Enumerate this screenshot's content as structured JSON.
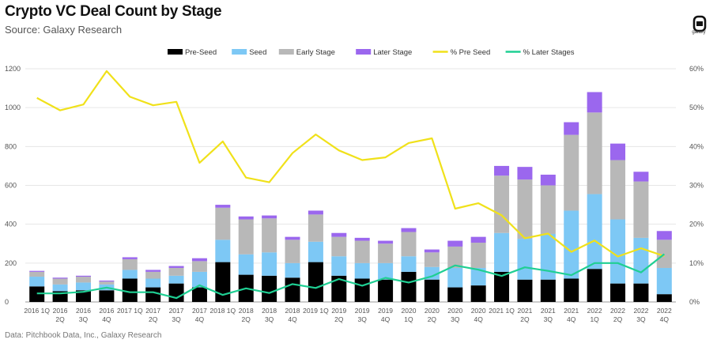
{
  "header": {
    "title": "Crypto VC Deal Count by Stage",
    "subtitle": "Source: Galaxy Research"
  },
  "footer": {
    "note": "Data: Pitchbook Data, Inc., Galaxy Research"
  },
  "logo": {
    "text": "galaxy"
  },
  "colors": {
    "pre_seed": "#000000",
    "seed": "#7dc8f5",
    "early": "#b8b8b8",
    "later": "#9b67ee",
    "pct_pre_seed": "#f0e11a",
    "pct_later": "#1fcf93",
    "grid": "#e6e6e6",
    "axis_text": "#555555"
  },
  "chart_data": {
    "type": "bar",
    "stacked": true,
    "title": "Crypto VC Deal Count by Stage",
    "ylim": [
      0,
      1200
    ],
    "yticks": [
      "0",
      "200",
      "400",
      "600",
      "800",
      "1000",
      "1200"
    ],
    "y2lim": [
      0,
      60
    ],
    "y2ticks": [
      "0%",
      "10%",
      "20%",
      "30%",
      "40%",
      "50%",
      "60%"
    ],
    "legend_position": "top",
    "categories": [
      [
        "2016 1Q",
        ""
      ],
      [
        "2016",
        "2Q"
      ],
      [
        "2016",
        "3Q"
      ],
      [
        "2016",
        "4Q"
      ],
      [
        "2017 1Q",
        ""
      ],
      [
        "2017",
        "2Q"
      ],
      [
        "2017",
        "3Q"
      ],
      [
        "2017",
        "4Q"
      ],
      [
        "2018 1Q",
        ""
      ],
      [
        "2018",
        "2Q"
      ],
      [
        "2018",
        "3Q"
      ],
      [
        "2018",
        "4Q"
      ],
      [
        "2019 1Q",
        ""
      ],
      [
        "2019",
        "2Q"
      ],
      [
        "2019",
        "3Q"
      ],
      [
        "2019",
        "4Q"
      ],
      [
        "2020",
        "1Q"
      ],
      [
        "2020",
        "2Q"
      ],
      [
        "2020",
        "3Q"
      ],
      [
        "2020",
        "4Q"
      ],
      [
        "2021 1Q",
        ""
      ],
      [
        "2021",
        "2Q"
      ],
      [
        "2021",
        "3Q"
      ],
      [
        "2021",
        "4Q"
      ],
      [
        "2022",
        "1Q"
      ],
      [
        "2022",
        "2Q"
      ],
      [
        "2022",
        "3Q"
      ],
      [
        "2022",
        "4Q"
      ]
    ],
    "series": [
      {
        "name": "Pre-Seed",
        "kind": "bar",
        "values": [
          80,
          55,
          60,
          60,
          120,
          75,
          95,
          75,
          205,
          140,
          135,
          125,
          205,
          135,
          120,
          115,
          155,
          115,
          75,
          85,
          155,
          115,
          115,
          120,
          170,
          95,
          95,
          40
        ]
      },
      {
        "name": "Seed",
        "kind": "bar",
        "values": [
          50,
          35,
          40,
          30,
          45,
          45,
          40,
          80,
          115,
          105,
          120,
          75,
          105,
          100,
          80,
          85,
          80,
          65,
          100,
          90,
          200,
          210,
          235,
          350,
          385,
          330,
          235,
          135
        ]
      },
      {
        "name": "Early Stage",
        "kind": "bar",
        "values": [
          25,
          30,
          30,
          15,
          55,
          35,
          40,
          55,
          165,
          180,
          175,
          120,
          140,
          100,
          115,
          100,
          125,
          75,
          110,
          130,
          295,
          305,
          250,
          390,
          420,
          305,
          290,
          145
        ]
      },
      {
        "name": "Later Stage",
        "kind": "bar",
        "values": [
          5,
          5,
          5,
          5,
          10,
          10,
          10,
          15,
          15,
          15,
          15,
          15,
          20,
          20,
          15,
          15,
          20,
          15,
          30,
          30,
          50,
          65,
          55,
          65,
          105,
          85,
          50,
          45
        ]
      },
      {
        "name": "% Pre Seed",
        "kind": "line",
        "axis": "right",
        "values": [
          52.5,
          49.3,
          50.8,
          59.4,
          52.8,
          50.6,
          51.5,
          35.8,
          41.3,
          32.0,
          30.8,
          38.3,
          43.1,
          39.0,
          36.5,
          37.2,
          40.9,
          42.1,
          24.0,
          25.4,
          22.3,
          16.4,
          17.6,
          12.9,
          15.8,
          11.7,
          13.8,
          11.8
        ]
      },
      {
        "name": "% Later Stages",
        "kind": "line",
        "axis": "right",
        "values": [
          2.2,
          2.2,
          2.6,
          3.7,
          2.5,
          2.5,
          1.0,
          4.3,
          1.8,
          3.5,
          2.3,
          4.6,
          3.6,
          5.9,
          4.2,
          6.2,
          5.0,
          6.6,
          9.4,
          8.3,
          6.7,
          8.9,
          8.0,
          6.9,
          10.0,
          10.0,
          7.6,
          12.3
        ]
      }
    ]
  }
}
